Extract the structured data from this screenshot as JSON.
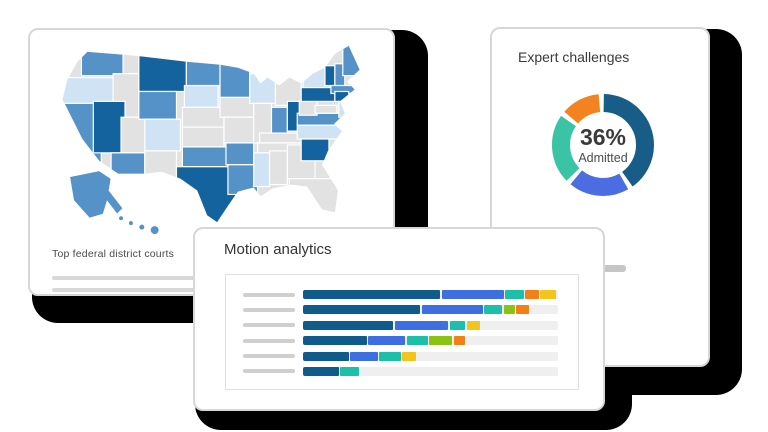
{
  "chart_data": [
    {
      "type": "choropleth-map",
      "title": "Top federal district courts",
      "legend_levels": {
        "dark": "#15639e",
        "medium": "#5492c8",
        "light": "#cfe3f4",
        "none": "#e2e2e2"
      },
      "states": {
        "WA": "medium",
        "OR": "light",
        "CA": "medium",
        "NV": "dark",
        "ID": "none",
        "UT": "none",
        "AZ": "medium",
        "MT": "dark",
        "WY": "medium",
        "CO": "light",
        "NM": "none",
        "ND": "medium",
        "SD": "light",
        "NE": "none",
        "KS": "none",
        "OK": "medium",
        "TX": "dark",
        "MN": "medium",
        "IA": "none",
        "MO": "none",
        "AR": "medium",
        "LA": "medium",
        "WI": "light",
        "IL": "none",
        "MI": "none",
        "IN": "medium",
        "OH": "dark",
        "KY": "none",
        "TN": "none",
        "MS": "light",
        "AL": "none",
        "GA": "none",
        "FL": "none",
        "SC": "dark",
        "NC": "light",
        "VA": "medium",
        "WV": "none",
        "MD": "none",
        "PA": "dark",
        "NY": "light",
        "VT": "dark",
        "NH": "medium",
        "ME": "medium",
        "MA": "medium",
        "RI": "medium",
        "CT": "dark",
        "NJ": "light",
        "AK": "medium",
        "HI": "medium"
      },
      "placeholder_lines": 2
    },
    {
      "type": "donut",
      "title": "Expert challenges",
      "center_value": "36%",
      "center_label": "Admitted",
      "segments": [
        {
          "color": "#185d87",
          "pct": 39.8
        },
        {
          "color": "#4a6de2",
          "pct": 19.2
        },
        {
          "color": "#3bc3a6",
          "pct": 22.0
        },
        {
          "color": "#f58220",
          "pct": 12.3
        }
      ],
      "gap_pct_each": 1.675,
      "start_offset_deg": -2
    },
    {
      "type": "stacked-bar",
      "title": "Motion analytics",
      "palette": {
        "navy": "#0f5c8c",
        "blue": "#3e6fe2",
        "teal": "#1cbfa9",
        "green": "#8cc312",
        "orange": "#f57f17",
        "yellow": "#f3c51b"
      },
      "rows": [
        {
          "segments": [
            [
              "navy",
              53.8
            ],
            [
              "blue",
              24.3
            ],
            [
              "teal",
              7.3
            ],
            [
              "orange",
              5.3
            ],
            [
              "yellow",
              6.0
            ]
          ]
        },
        {
          "segments": [
            [
              "navy",
              46.0
            ],
            [
              "blue",
              24.0
            ],
            [
              "teal",
              7.0
            ],
            [
              "green",
              4.2
            ],
            [
              "orange",
              5.1
            ]
          ]
        },
        {
          "segments": [
            [
              "navy",
              35.4
            ],
            [
              "blue",
              21.0
            ],
            [
              "teal",
              6.0
            ],
            [
              "yellow",
              5.3
            ]
          ]
        },
        {
          "segments": [
            [
              "navy",
              25.0
            ],
            [
              "blue",
              14.5
            ],
            [
              "teal",
              8.3
            ],
            [
              "green",
              9.0
            ],
            [
              "orange",
              4.2
            ]
          ]
        },
        {
          "segments": [
            [
              "navy",
              18.0
            ],
            [
              "blue",
              10.8
            ],
            [
              "teal",
              8.3
            ],
            [
              "yellow",
              5.6
            ]
          ]
        },
        {
          "segments": [
            [
              "navy",
              14.0
            ],
            [
              "teal",
              7.3
            ]
          ]
        }
      ]
    }
  ]
}
